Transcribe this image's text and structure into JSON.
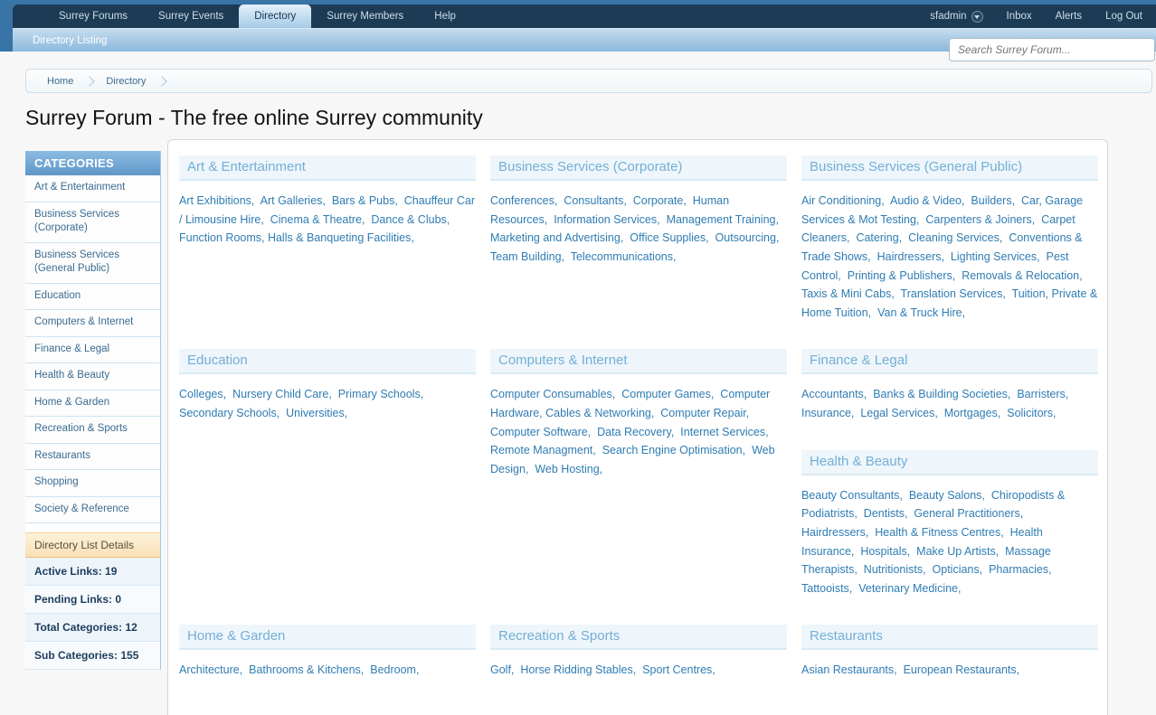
{
  "nav": {
    "tabs": [
      {
        "label": "Surrey Forums",
        "active": false
      },
      {
        "label": "Surrey Events",
        "active": false
      },
      {
        "label": "Directory",
        "active": true
      },
      {
        "label": "Surrey Members",
        "active": false
      },
      {
        "label": "Help",
        "active": false
      }
    ],
    "account_name": "sfadmin",
    "user_links": [
      "Inbox",
      "Alerts",
      "Log Out"
    ]
  },
  "subnav": {
    "label": "Directory Listing"
  },
  "search": {
    "placeholder": "Search Surrey Forum..."
  },
  "breadcrumb": [
    "Home",
    "Directory"
  ],
  "page_title": "Surrey Forum - The free online Surrey community",
  "sidebar": {
    "categories_title": "CATEGORIES",
    "items": [
      "Art & Entertainment",
      "Business Services (Corporate)",
      "Business Services (General Public)",
      "Education",
      "Computers & Internet",
      "Finance & Legal",
      "Health & Beauty",
      "Home & Garden",
      "Recreation & Sports",
      "Restaurants",
      "Shopping",
      "Society & Reference"
    ],
    "details": {
      "title": "Directory List Details",
      "stats": [
        {
          "label": "Active Links",
          "value": "19"
        },
        {
          "label": "Pending Links",
          "value": "0"
        },
        {
          "label": "Total Categories",
          "value": "12"
        },
        {
          "label": "Sub Categories",
          "value": "155"
        }
      ]
    }
  },
  "directory": {
    "rows": [
      [
        [
          {
            "title": "Art & Entertainment",
            "links": [
              "Art Exhibitions",
              "Art Galleries",
              "Bars & Pubs",
              "Chauffeur Car / Limousine Hire",
              "Cinema & Theatre",
              "Dance & Clubs",
              "Function Rooms, Halls & Banqueting Facilities"
            ]
          }
        ],
        [
          {
            "title": "Business Services (Corporate)",
            "links": [
              "Conferences",
              "Consultants",
              "Corporate",
              "Human Resources",
              "Information Services",
              "Management Training",
              "Marketing and Advertising",
              "Office Supplies",
              "Outsourcing",
              "Team Building",
              "Telecommunications"
            ]
          }
        ],
        [
          {
            "title": "Business Services (General Public)",
            "links": [
              "Air Conditioning",
              "Audio & Video",
              "Builders",
              "Car, Garage Services & Mot Testing",
              "Carpenters & Joiners",
              "Carpet Cleaners",
              "Catering",
              "Cleaning Services",
              "Conventions & Trade Shows",
              "Hairdressers",
              "Lighting Services",
              "Pest Control",
              "Printing & Publishers",
              "Removals & Relocation",
              "Taxis & Mini Cabs",
              "Translation Services",
              "Tuition, Private & Home Tuition",
              "Van & Truck Hire"
            ]
          }
        ]
      ],
      [
        [
          {
            "title": "Education",
            "links": [
              "Colleges",
              "Nursery Child Care",
              "Primary Schools",
              "Secondary Schools",
              "Universities"
            ]
          }
        ],
        [
          {
            "title": "Computers & Internet",
            "links": [
              "Computer Consumables",
              "Computer Games",
              "Computer Hardware, Cables & Networking",
              "Computer Repair",
              "Computer Software",
              "Data Recovery",
              "Internet Services",
              "Remote Managment",
              "Search Engine Optimisation",
              "Web Design",
              "Web Hosting"
            ]
          }
        ],
        [
          {
            "title": "Finance & Legal",
            "links": [
              "Accountants",
              "Banks & Building Societies",
              "Barristers",
              "Insurance",
              "Legal Services",
              "Mortgages",
              "Solicitors"
            ]
          },
          {
            "title": "Health & Beauty",
            "links": [
              "Beauty Consultants",
              "Beauty Salons",
              "Chiropodists & Podiatrists",
              "Dentists",
              "General Practitioners",
              "Hairdressers",
              "Health & Fitness Centres",
              "Health Insurance",
              "Hospitals",
              "Make Up Artists",
              "Massage Therapists",
              "Nutritionists",
              "Opticians",
              "Pharmacies",
              "Tattooists",
              "Veterinary Medicine"
            ]
          }
        ]
      ],
      [
        [
          {
            "title": "Home & Garden",
            "links": [
              "Architecture",
              "Bathrooms & Kitchens",
              "Bedroom"
            ]
          }
        ],
        [
          {
            "title": "Recreation & Sports",
            "links": [
              "Golf",
              "Horse Ridding Stables",
              "Sport Centres"
            ]
          }
        ],
        [
          {
            "title": "Restaurants",
            "links": [
              "Asian Restaurants",
              "European Restaurants"
            ]
          }
        ]
      ]
    ]
  },
  "colors": {
    "header_frame": "#3874a6",
    "nav_bg": "#1d3b54",
    "nav_link": "#cddeec",
    "active_tab_top": "#e3f0fa",
    "active_tab_bottom": "#a6cbe7",
    "subnav_top": "#c3dcee",
    "subnav_bottom": "#8db8dc",
    "link_blue": "#2f7cb3",
    "section_header_text": "#74aed6",
    "section_header_bg": "#eef6fb",
    "sidebar_header_top": "#8cbbe2",
    "sidebar_header_bottom": "#5f97c8",
    "details_header_bg": "#f9e0b6",
    "stat_text": "#1c3c5c"
  }
}
